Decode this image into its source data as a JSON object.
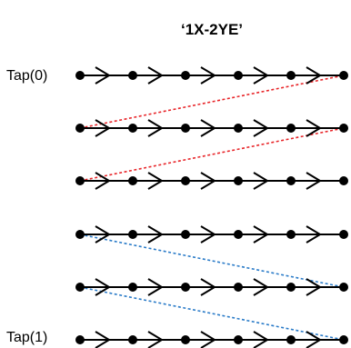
{
  "title": "‘1X-2YE’",
  "labels": {
    "first_tap": "Tap(0)",
    "last_tap": "Tap(1)"
  },
  "structure": {
    "row_count": 6,
    "nodes_per_row": 6
  },
  "colors": {
    "chain": "#000000",
    "connector_red": "#e8262a",
    "connector_blue": "#2a7bc8"
  },
  "connectors": [
    {
      "color": "red",
      "from_row": 1,
      "to_row": 0
    },
    {
      "color": "red",
      "from_row": 2,
      "to_row": 1
    },
    {
      "color": "blue",
      "from_row": 3,
      "to_row": 4
    },
    {
      "color": "blue",
      "from_row": 4,
      "to_row": 5
    }
  ]
}
